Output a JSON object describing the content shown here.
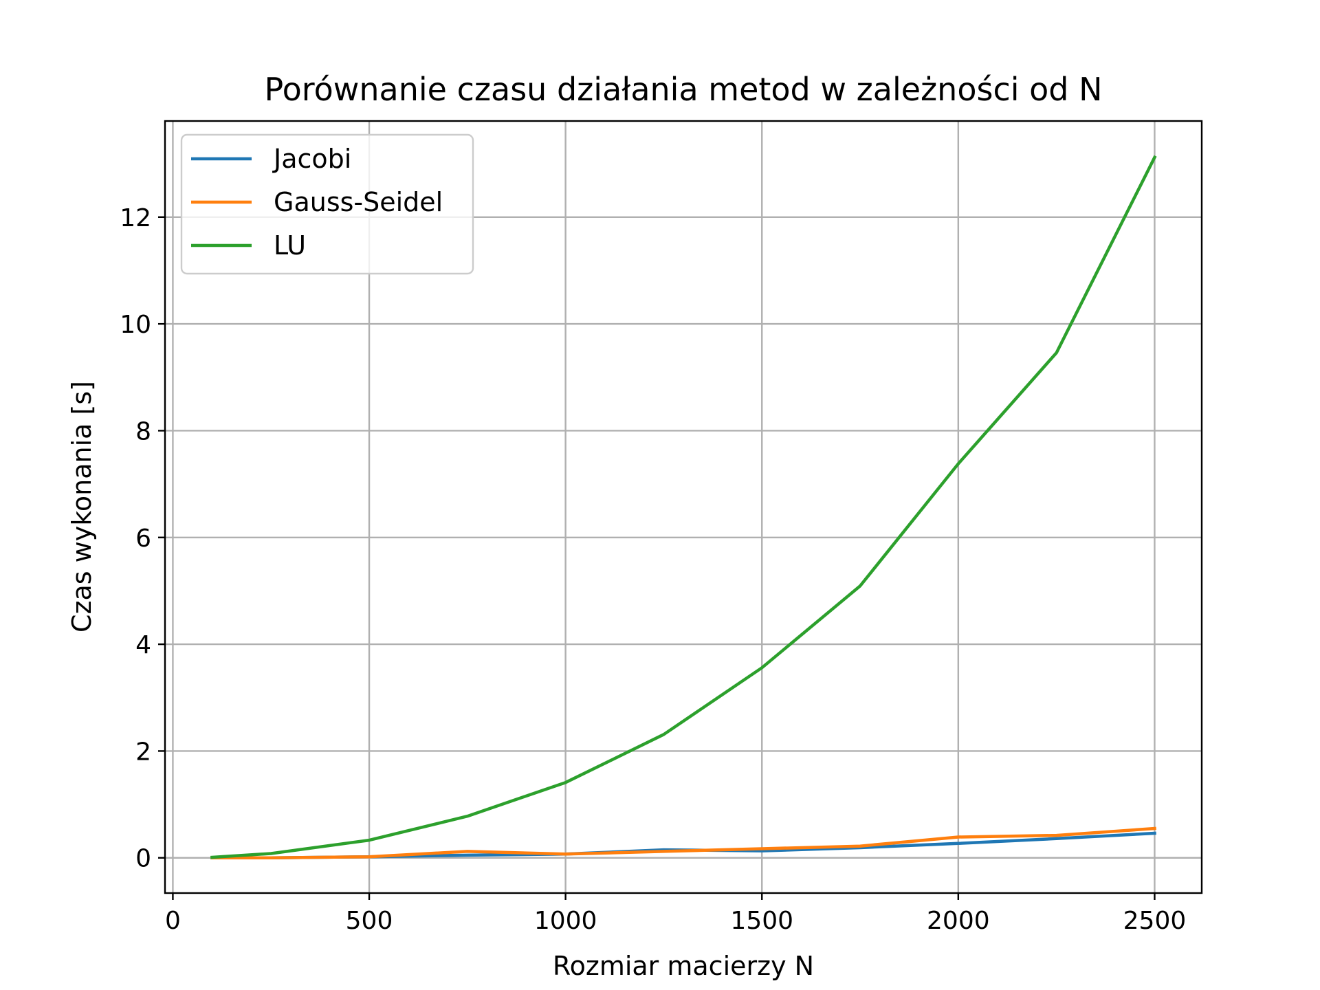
{
  "chart_data": {
    "type": "line",
    "title": "Porównanie czasu działania metod w zależności od N",
    "xlabel": "Rozmiar macierzy N",
    "ylabel": "Czas wykonania [s]",
    "xlim": [
      -20,
      2620
    ],
    "ylim": [
      -0.66,
      13.8
    ],
    "xticks": [
      0,
      500,
      1000,
      1500,
      2000,
      2500
    ],
    "yticks": [
      0,
      2,
      4,
      6,
      8,
      10,
      12
    ],
    "grid": true,
    "legend_position": "upper-left",
    "x": [
      100,
      250,
      500,
      750,
      1000,
      1250,
      1500,
      1750,
      2000,
      2250,
      2500
    ],
    "series": [
      {
        "name": "Jacobi",
        "color": "#1f77b4",
        "values": [
          0.0,
          0.0,
          0.02,
          0.05,
          0.07,
          0.15,
          0.13,
          0.19,
          0.27,
          0.36,
          0.46
        ]
      },
      {
        "name": "Gauss-Seidel",
        "color": "#ff7f0e",
        "values": [
          0.0,
          0.0,
          0.02,
          0.12,
          0.07,
          0.12,
          0.17,
          0.22,
          0.39,
          0.42,
          0.55
        ]
      },
      {
        "name": "LU",
        "color": "#2ca02c",
        "values": [
          0.01,
          0.08,
          0.33,
          0.78,
          1.41,
          2.31,
          3.56,
          5.09,
          7.38,
          9.46,
          13.12
        ]
      }
    ]
  }
}
